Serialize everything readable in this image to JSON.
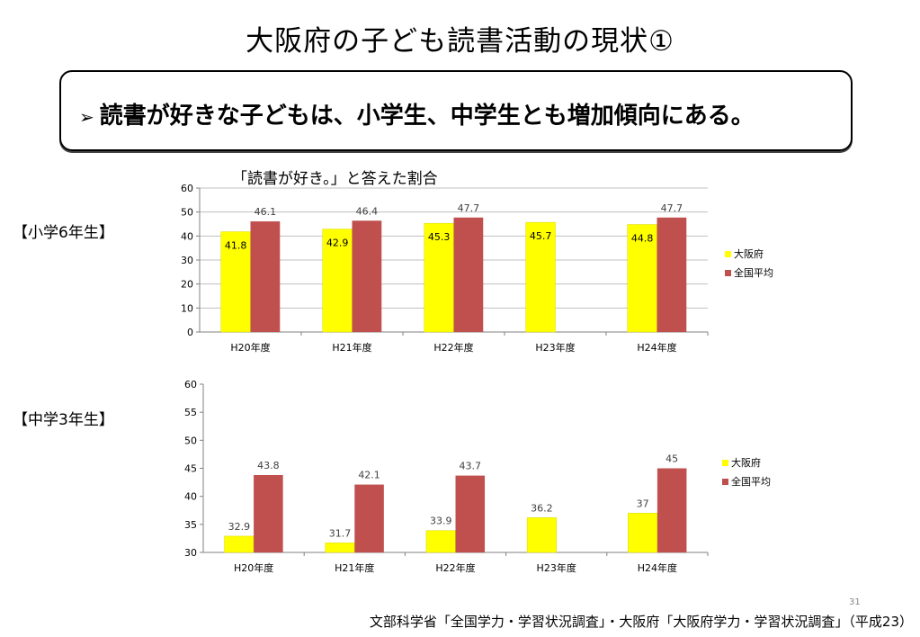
{
  "title": "大阪府の子ども読書活動の現状①",
  "callout": {
    "arrow": "➢",
    "text": "読書が好きな子どもは、小学生、中学生とも増加傾向にある。"
  },
  "subtitle": "「読書が好き。」と答えた割合",
  "grades": {
    "elementary": "【小学6年生】",
    "junior_high": "【中学3年生】"
  },
  "source": "文部科学省「全国学力・学習状況調査」・大阪府「大阪府学力・学習状況調査」（平成23）",
  "page_number": "31",
  "colors": {
    "osaka": "#ffff00",
    "national": "#c0504d",
    "grid": "#c0c0c0",
    "axis": "#808080"
  },
  "chart_data": [
    {
      "type": "bar",
      "title": "",
      "categories": [
        "H20年度",
        "H21年度",
        "H22年度",
        "H23年度",
        "H24年度"
      ],
      "ylim": [
        0,
        60
      ],
      "yticks": [
        0,
        10,
        20,
        30,
        40,
        50,
        60
      ],
      "grid": true,
      "legend": "right",
      "series": [
        {
          "name": "大阪府",
          "values": [
            41.8,
            42.9,
            45.3,
            45.7,
            44.8
          ],
          "labels": [
            "41.8",
            "42.9",
            "45.3",
            "45.7",
            "44.8"
          ],
          "label_position": "inside"
        },
        {
          "name": "全国平均",
          "values": [
            46.1,
            46.4,
            47.7,
            null,
            47.7
          ],
          "labels": [
            "46.1",
            "46.4",
            "47.7",
            "",
            "47.7"
          ],
          "label_position": "above"
        }
      ]
    },
    {
      "type": "bar",
      "title": "",
      "categories": [
        "H20年度",
        "H21年度",
        "H22年度",
        "H23年度",
        "H24年度"
      ],
      "ylim": [
        30,
        60
      ],
      "yticks": [
        30,
        35,
        40,
        45,
        50,
        55,
        60
      ],
      "grid": false,
      "legend": "right",
      "series": [
        {
          "name": "大阪府",
          "values": [
            32.9,
            31.7,
            33.9,
            36.2,
            37
          ],
          "labels": [
            "32.9",
            "31.7",
            "33.9",
            "36.2",
            "37"
          ],
          "label_position": "above"
        },
        {
          "name": "全国平均",
          "values": [
            43.8,
            42.1,
            43.7,
            null,
            45
          ],
          "labels": [
            "43.8",
            "42.1",
            "43.7",
            "",
            "45"
          ],
          "label_position": "above"
        }
      ]
    }
  ]
}
